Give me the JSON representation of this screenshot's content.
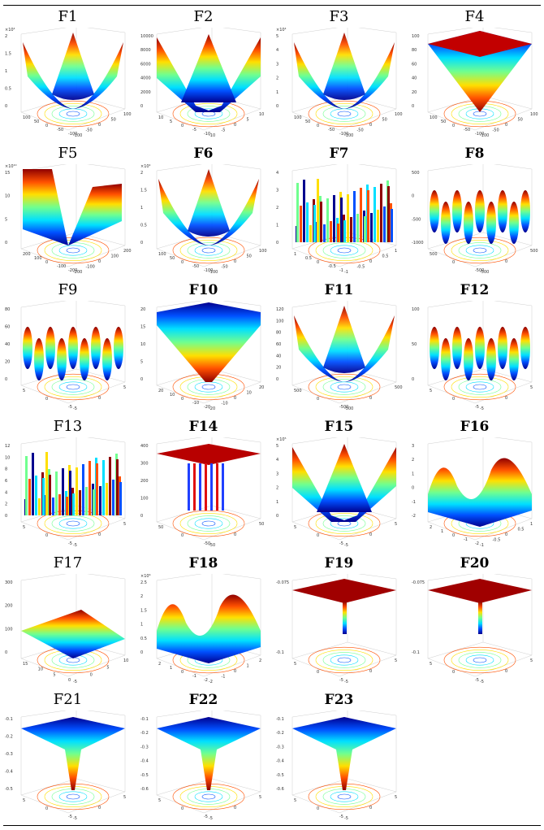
{
  "figures": [
    {
      "id": "F1",
      "style": "bowl",
      "z_ticks": [
        "2",
        "1.5",
        "1",
        "0.5",
        "0"
      ],
      "z_exp": "×10⁴",
      "xy_ticks": [
        "100",
        "50",
        "0",
        "-50",
        "-100",
        "-100",
        "-50",
        "0",
        "50",
        "100"
      ],
      "bold": false
    },
    {
      "id": "F2",
      "style": "ridge",
      "z_ticks": [
        "10000",
        "8000",
        "6000",
        "4000",
        "2000",
        "0"
      ],
      "z_exp": "",
      "xy_ticks": [
        "10",
        "5",
        "0",
        "-5",
        "-10",
        "-10",
        "-5",
        "0",
        "5",
        "10"
      ],
      "bold": false
    },
    {
      "id": "F3",
      "style": "bowl",
      "z_ticks": [
        "5",
        "4",
        "3",
        "2",
        "1",
        "0"
      ],
      "z_exp": "×10⁴",
      "xy_ticks": [
        "100",
        "50",
        "0",
        "-50",
        "-100",
        "-100",
        "-50",
        "0",
        "50",
        "100"
      ],
      "bold": false
    },
    {
      "id": "F4",
      "style": "pyramid",
      "z_ticks": [
        "100",
        "80",
        "60",
        "40",
        "20",
        "0"
      ],
      "z_exp": "",
      "xy_ticks": [
        "100",
        "50",
        "0",
        "-50",
        "-100",
        "-100",
        "-50",
        "0",
        "50",
        "100"
      ],
      "bold": false
    },
    {
      "id": "F5",
      "style": "valley",
      "z_ticks": [
        "15",
        "10",
        "5",
        "0"
      ],
      "z_exp": "×10¹⁰",
      "xy_ticks": [
        "200",
        "100",
        "0",
        "-100",
        "-200",
        "-200",
        "-100",
        "0",
        "100",
        "200"
      ],
      "bold": false
    },
    {
      "id": "F6",
      "style": "bowl",
      "z_ticks": [
        "2",
        "1.5",
        "1",
        "0.5",
        "0"
      ],
      "z_exp": "×10⁴",
      "xy_ticks": [
        "100",
        "50",
        "0",
        "-50",
        "-100",
        "-100",
        "-50",
        "0",
        "50",
        "100"
      ],
      "bold": true
    },
    {
      "id": "F7",
      "style": "noise",
      "z_ticks": [
        "4",
        "3",
        "2",
        "1",
        "0"
      ],
      "z_exp": "",
      "xy_ticks": [
        "1",
        "0.5",
        "0",
        "-0.5",
        "-1",
        "-1",
        "-0.5",
        "0",
        "0.5",
        "1"
      ],
      "bold": true
    },
    {
      "id": "F8",
      "style": "waves",
      "z_ticks": [
        "500",
        "0",
        "-500",
        "-1000"
      ],
      "z_exp": "",
      "xy_ticks": [
        "500",
        "0",
        "-500",
        "-500",
        "0",
        "500"
      ],
      "bold": true
    },
    {
      "id": "F9",
      "style": "waves",
      "z_ticks": [
        "80",
        "60",
        "40",
        "20",
        "0"
      ],
      "z_exp": "",
      "xy_ticks": [
        "5",
        "0",
        "-5",
        "-5",
        "0",
        "5"
      ],
      "bold": false
    },
    {
      "id": "F10",
      "style": "funnel",
      "z_ticks": [
        "20",
        "15",
        "10",
        "5",
        "0"
      ],
      "z_exp": "",
      "xy_ticks": [
        "20",
        "10",
        "0",
        "-10",
        "-20",
        "-20",
        "-10",
        "0",
        "10",
        "20"
      ],
      "bold": true
    },
    {
      "id": "F11",
      "style": "bowl",
      "z_ticks": [
        "120",
        "100",
        "80",
        "60",
        "40",
        "20",
        "0"
      ],
      "z_exp": "",
      "xy_ticks": [
        "500",
        "0",
        "-500",
        "-500",
        "0",
        "500"
      ],
      "bold": true
    },
    {
      "id": "F12",
      "style": "waves",
      "z_ticks": [
        "100",
        "50",
        "0"
      ],
      "z_exp": "",
      "xy_ticks": [
        "5",
        "0",
        "-5",
        "-5",
        "0",
        "5"
      ],
      "bold": true
    },
    {
      "id": "F13",
      "style": "noise",
      "z_ticks": [
        "12",
        "10",
        "8",
        "6",
        "4",
        "2",
        "0"
      ],
      "z_exp": "",
      "xy_ticks": [
        "5",
        "0",
        "-5",
        "-5",
        "0",
        "5"
      ],
      "bold": false
    },
    {
      "id": "F14",
      "style": "spikes",
      "z_ticks": [
        "400",
        "300",
        "200",
        "100",
        "0"
      ],
      "z_exp": "",
      "xy_ticks": [
        "50",
        "0",
        "-50",
        "-50",
        "0",
        "50"
      ],
      "bold": true
    },
    {
      "id": "F15",
      "style": "ridge",
      "z_ticks": [
        "5",
        "4",
        "3",
        "2",
        "1",
        "0"
      ],
      "z_exp": "×10⁵",
      "xy_ticks": [
        "5",
        "0",
        "-5",
        "-5",
        "0",
        "5"
      ],
      "bold": true
    },
    {
      "id": "F16",
      "style": "hills",
      "z_ticks": [
        "3",
        "2",
        "1",
        "0",
        "-1",
        "-2"
      ],
      "z_exp": "",
      "xy_ticks": [
        "2",
        "1",
        "0",
        "-1",
        "-2",
        "-1",
        "-0.5",
        "0",
        "0.5",
        "1"
      ],
      "bold": true
    },
    {
      "id": "F17",
      "style": "ramp",
      "z_ticks": [
        "300",
        "200",
        "100",
        "0"
      ],
      "z_exp": "",
      "xy_ticks": [
        "15",
        "10",
        "5",
        "0",
        "-5",
        "0",
        "5",
        "10"
      ],
      "bold": false
    },
    {
      "id": "F18",
      "style": "hills",
      "z_ticks": [
        "2.5",
        "2",
        "1.5",
        "1",
        "0.5",
        "0"
      ],
      "z_exp": "×10⁶",
      "xy_ticks": [
        "2",
        "1",
        "0",
        "-1",
        "-2",
        "-2",
        "-1",
        "0",
        "1",
        "2"
      ],
      "bold": true
    },
    {
      "id": "F19",
      "style": "well",
      "z_ticks": [
        "-0.075",
        "-0.1"
      ],
      "z_exp": "",
      "xy_ticks": [
        "5",
        "0",
        "-5",
        "-5",
        "0",
        "5"
      ],
      "bold": true
    },
    {
      "id": "F20",
      "style": "well",
      "z_ticks": [
        "-0.075",
        "-0.1"
      ],
      "z_exp": "",
      "xy_ticks": [
        "5",
        "0",
        "-5",
        "-5",
        "0",
        "5"
      ],
      "bold": true
    },
    {
      "id": "F21",
      "style": "cone",
      "z_ticks": [
        "-0.1",
        "-0.2",
        "-0.3",
        "-0.4",
        "-0.5"
      ],
      "z_exp": "",
      "xy_ticks": [
        "5",
        "0",
        "-5",
        "-5",
        "0",
        "5"
      ],
      "bold": false
    },
    {
      "id": "F22",
      "style": "cone",
      "z_ticks": [
        "-0.1",
        "-0.2",
        "-0.3",
        "-0.4",
        "-0.5",
        "-0.6"
      ],
      "z_exp": "",
      "xy_ticks": [
        "5",
        "0",
        "-5",
        "-5",
        "0",
        "5"
      ],
      "bold": true
    },
    {
      "id": "F23",
      "style": "cone",
      "z_ticks": [
        "-0.1",
        "-0.2",
        "-0.3",
        "-0.4",
        "-0.5",
        "-0.6"
      ],
      "z_exp": "",
      "xy_ticks": [
        "5",
        "0",
        "-5",
        "-5",
        "0",
        "5"
      ],
      "bold": true
    }
  ],
  "palette": [
    "#00008f",
    "#0050ff",
    "#00dfff",
    "#70ff8f",
    "#ffdf00",
    "#ff5000",
    "#8f0000"
  ]
}
